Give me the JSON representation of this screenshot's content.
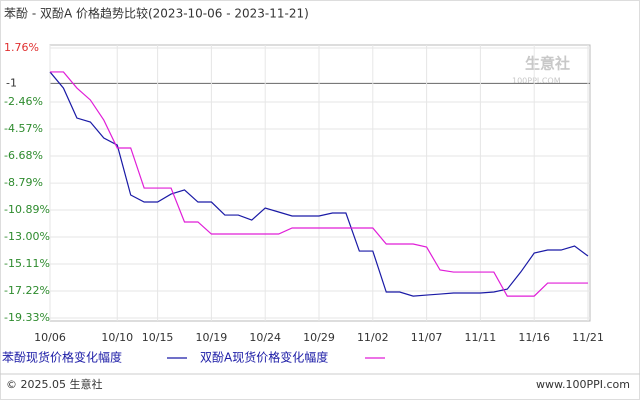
{
  "chart_data": {
    "type": "line",
    "title": "苯酚 - 双酚A 价格趋势比较(2023-10-06 - 2023-11-21)",
    "categories": [
      "10/06",
      null,
      null,
      null,
      null,
      "10/10",
      null,
      null,
      "10/15",
      null,
      null,
      null,
      "10/19",
      null,
      null,
      null,
      "10/24",
      null,
      null,
      null,
      "10/29",
      null,
      null,
      null,
      "11/02",
      null,
      null,
      null,
      "11/07",
      null,
      null,
      null,
      "11/11",
      null,
      null,
      null,
      "11/16",
      null,
      null,
      null,
      "11/21"
    ],
    "series": [
      {
        "name": "苯酚现货价格变化幅度",
        "color": "#1a1aa6",
        "values": [
          -0.11,
          -1.37,
          -3.71,
          -4.02,
          -5.27,
          -5.82,
          -9.72,
          -10.27,
          -10.27,
          -9.65,
          -9.33,
          -10.27,
          -10.27,
          -11.29,
          -11.29,
          -11.68,
          -10.74,
          -11.05,
          -11.36,
          -11.36,
          -11.36,
          -11.13,
          -11.13,
          -14.1,
          -14.1,
          -17.3,
          -17.3,
          -17.62,
          -17.54,
          -17.46,
          -17.38,
          -17.38,
          -17.38,
          -17.3,
          -17.07,
          -15.74,
          -14.26,
          -14.02,
          -14.02,
          -13.71,
          -14.49
        ]
      },
      {
        "name": "双酚A现货价格变化幅度",
        "color": "#e01ed8",
        "values": [
          -0.11,
          -0.11,
          -1.37,
          -2.3,
          -3.87,
          -6.05,
          -6.05,
          -9.18,
          -9.18,
          -9.18,
          -11.83,
          -11.83,
          -12.77,
          -12.77,
          -12.77,
          -12.77,
          -12.77,
          -12.77,
          -12.3,
          -12.3,
          -12.3,
          -12.3,
          -12.3,
          -12.3,
          -12.3,
          -13.55,
          -13.55,
          -13.55,
          -13.79,
          -15.58,
          -15.74,
          -15.74,
          -15.74,
          -15.74,
          -17.62,
          -17.62,
          -17.62,
          -16.6,
          -16.6,
          -16.6,
          -16.6
        ]
      }
    ],
    "ylim": [
      -19.33,
      1.76
    ],
    "yticks": [
      {
        "value": 1.76,
        "label": "1.76%"
      },
      -1,
      {
        "value": -2.46,
        "label": "-2.46%"
      },
      {
        "value": -4.57,
        "label": "-4.57%"
      },
      {
        "value": -6.68,
        "label": "-6.68%"
      },
      {
        "value": -8.79,
        "label": "-8.79%"
      },
      {
        "value": -10.89,
        "label": "-10.89%"
      },
      {
        "value": -13.0,
        "label": "-13.00%"
      },
      {
        "value": -15.11,
        "label": "-15.11%"
      },
      {
        "value": -17.22,
        "label": "-17.22%"
      },
      {
        "value": -19.33,
        "label": "-19.33%"
      }
    ],
    "baseline": -1,
    "grid": true,
    "watermark": {
      "name": "生意社",
      "site": "100PPI.COM"
    },
    "footer": {
      "left": "© 2025.05 生意社",
      "right": "www.100PPI.com"
    }
  }
}
